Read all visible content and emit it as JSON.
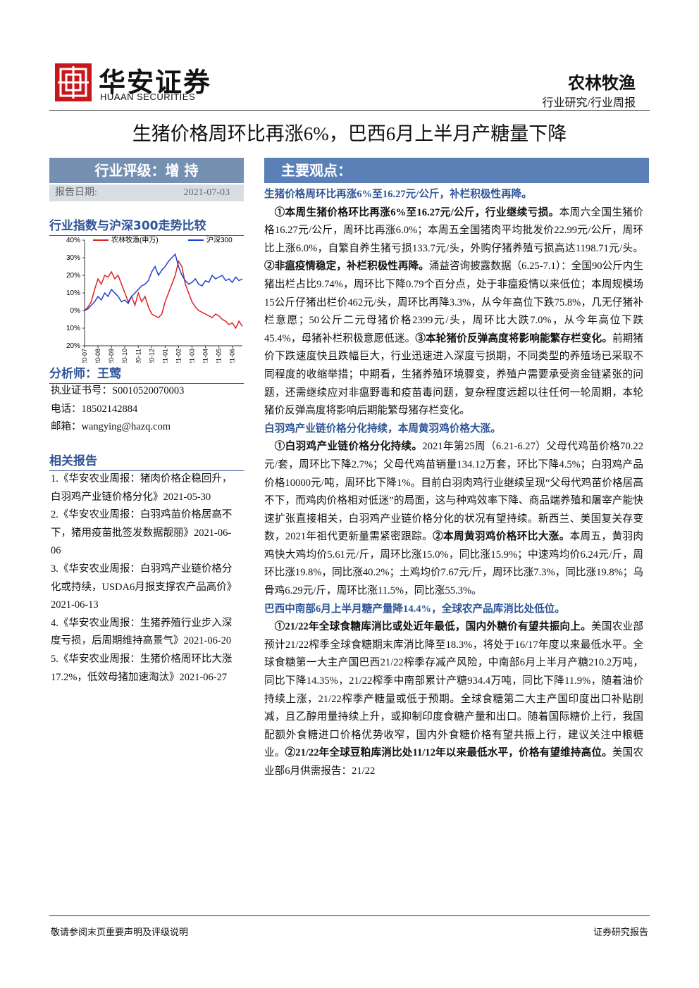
{
  "header": {
    "logo_cn": "华安证券",
    "logo_en": "HUAAN SECURITIES",
    "sector": "农林牧渔",
    "report_type": "行业研究/行业周报"
  },
  "title": "生猪价格周环比再涨6%，巴西6月上半月产糖量下降",
  "sidebar": {
    "rating": "行业评级：增 持",
    "date_label": "报告日期:",
    "date": "2021-07-03",
    "chart_heading": "行业指数与沪深300走势比较",
    "chart_data": {
      "type": "line",
      "categories": [
        "20-07",
        null,
        null,
        null,
        "20-08",
        null,
        null,
        null,
        "20-09",
        null,
        null,
        null,
        "20-10",
        null,
        null,
        null,
        "20-11",
        null,
        null,
        null,
        "20-12",
        null,
        null,
        null,
        "21-01",
        null,
        null,
        null,
        "21-02",
        null,
        null,
        null,
        "21-03",
        null,
        null,
        null,
        "21-04",
        null,
        null,
        null,
        "21-05",
        null,
        null,
        null,
        "21-06",
        null,
        null,
        null
      ],
      "series": [
        {
          "name": "农林牧渔(申万)",
          "color": "#e02020",
          "values": [
            0,
            2,
            5,
            12,
            18,
            15,
            20,
            19,
            22,
            18,
            20,
            15,
            10,
            5,
            8,
            3,
            10,
            5,
            8,
            2,
            -2,
            -3,
            -4,
            -2,
            5,
            10,
            15,
            20,
            28,
            25,
            15,
            10,
            5,
            2,
            0,
            -1,
            -2,
            -3,
            -4,
            -2,
            -3,
            -5,
            -6,
            -8,
            -7,
            -10,
            -6,
            -9
          ]
        },
        {
          "name": "沪深300",
          "color": "#1f3fd0",
          "values": [
            0,
            1,
            3,
            5,
            8,
            6,
            10,
            8,
            12,
            10,
            8,
            5,
            6,
            4,
            8,
            10,
            12,
            14,
            15,
            17,
            22,
            25,
            20,
            23,
            25,
            28,
            30,
            32,
            25,
            20,
            17,
            15,
            16,
            18,
            15,
            14,
            17,
            16,
            20,
            18,
            19,
            20,
            17,
            18,
            16,
            19,
            17,
            18
          ]
        }
      ],
      "ylim": [
        -20,
        40
      ],
      "yticks": [
        {
          "value": 40,
          "label": "40%"
        },
        {
          "value": 30,
          "label": "30%"
        },
        {
          "value": 20,
          "label": "20%"
        },
        {
          "value": 10,
          "label": "10%"
        },
        {
          "value": 0,
          "label": "0%"
        },
        {
          "value": -10,
          "label": "10%"
        },
        {
          "value": -20,
          "label": "20%"
        }
      ]
    },
    "analyst": "分析师：王莺",
    "license": "执业证书号：S0010520070003",
    "phone": "电话：18502142884",
    "email": "邮箱：wangying@hazq.com",
    "related_heading": "相关报告",
    "related": [
      "1.《华安农业周报：猪肉价格企稳回升，白羽鸡产业链价格分化》2021-05-30",
      "2.《华安农业周报：白羽鸡苗价格居高不下，猪用疫苗批签发数据靓丽》2021-06-06",
      "3.《华安农业周报：白羽鸡产业链价格分化或持续，USDA6月报支撑农产品高价》2021-06-13",
      "4.《华安农业周报：生猪养殖行业步入深度亏损，后周期维持高景气》2021-06-20",
      "5.《华安农业周报：生猪价格周环比大涨17.2%，低效母猪加速淘汰》2021-06-27"
    ]
  },
  "main": {
    "heading": "主要观点：",
    "sections": [
      {
        "heading": "生猪价格周环比再涨6%至16.27元/公斤，补栏积极性再降。",
        "runs": [
          {
            "b": "①本周生猪价格环比再涨6%至16.27元/公斤，行业继续亏损。"
          },
          {
            "t": "本周六全国生猪价格16.27元/公斤，周环比再涨6.0%；本周五全国猪肉平均批发价22.99元/公斤，周环比上涨6.0%，自繁自养生猪亏损133.7元/头，外购仔猪养殖亏损高达1198.71元/头。"
          },
          {
            "b": "②非瘟疫情稳定，补栏积极性再降。"
          },
          {
            "t": "涌益咨询披露数据（6.25-7.1）：全国90公斤内生猪出栏占比9.74%，周环比下降0.79个百分点，处于非瘟疫情以来低位；本周规模场15公斤仔猪出栏价462元/头，周环比再降3.3%，从今年高位下跌75.8%，几无仔猪补栏意愿；50公斤二元母猪价格2399元/头，周环比大跌7.0%，从今年高位下跌45.4%，母猪补栏积极意愿低迷。"
          },
          {
            "b": "③本轮猪价反弹高度将影响能繁存栏变化。"
          },
          {
            "t": "前期猪价下跌速度快且跌幅巨大，行业迅速进入深度亏损期，不同类型的养殖场已采取不同程度的收缩举措；中期看，生猪养殖环境骤变，养殖户需要承受资金链紧张的问题，还需继续应对非瘟野毒和疫苗毒问题，复杂程度远超以往任何一轮周期，本轮猪价反弹高度将影响后期能繁母猪存栏变化。"
          }
        ]
      },
      {
        "heading": "白羽鸡产业链价格分化持续，本周黄羽鸡价格大涨。",
        "runs": [
          {
            "b": "①白羽鸡产业链价格分化持续。"
          },
          {
            "t": "2021年第25周（6.21-6.27）父母代鸡苗价格70.22元/套，周环比下降2.7%；父母代鸡苗销量134.12万套，环比下降4.5%；白羽鸡产品价格10000元/吨，周环比下降1%。目前白羽肉鸡行业继续呈现“父母代鸡苗价格居高不下，而鸡肉价格相对低迷”的局面，这与种鸡效率下降、商品端养殖和屠宰产能快速扩张直接相关，白羽鸡产业链价格分化的状况有望持续。新西兰、美国复关存变数，2021年祖代更新量需紧密跟踪。"
          },
          {
            "b": "②本周黄羽鸡价格环比大涨。"
          },
          {
            "t": "本周五，黄羽肉鸡快大鸡均价5.61元/斤，周环比涨15.0%，同比涨15.9%；中速鸡均价6.24元/斤，周环比涨19.8%，同比涨40.2%；土鸡均价7.67元/斤，周环比涨7.3%，同比涨19.8%；乌骨鸡6.29元/斤，周环比涨11.5%，同比涨55.3%。"
          }
        ]
      },
      {
        "heading": "巴西中南部6月上半月糖产量降14.4%，全球农产品库消比处低位。",
        "runs": [
          {
            "b": "①21/22年全球食糖库消比或处近年最低，国内外糖价有望共振向上。"
          },
          {
            "t": "美国农业部预计21/22榨季全球食糖期末库消比降至18.3%，将处于16/17年度以来最低水平。全球食糖第一大主产国巴西21/22榨季存减产风险，中南部6月上半月产糖210.2万吨，同比下降14.35%，21/22榨季中南部累计产糖934.4万吨，同比下降11.9%，随着油价持续上涨，21/22榨季产糖量或低于预期。全球食糖第二大主产国印度出口补贴削减，且乙醇用量持续上升，或抑制印度食糖产量和出口。随着国际糖价上行，我国配额外食糖进口价格优势收窄，国内外食糖价格有望共振上行，建议关注中粮糖业。"
          },
          {
            "b": "②21/22年全球豆粕库消比处11/12年以来最低水平，价格有望维持高位。"
          },
          {
            "t": "美国农业部6月供需报告：21/22"
          }
        ]
      }
    ]
  },
  "footer": {
    "left": "敬请参阅末页重要声明及评级说明",
    "right": "证券研究报告"
  }
}
